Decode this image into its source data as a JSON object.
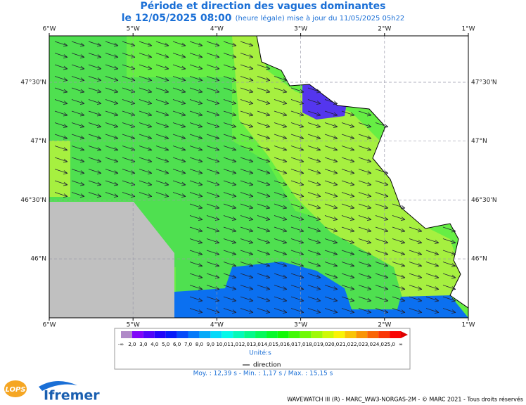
{
  "header": {
    "title": "Période et direction des vagues dominantes",
    "date": "le 12/05/2025 08:00",
    "update": "(heure légale) mise à jour du 11/05/2025 05h22"
  },
  "axes": {
    "lon_labels": [
      "6°W",
      "5°W",
      "4°W",
      "3°W",
      "2°W",
      "1°W"
    ],
    "lat_labels": [
      "47°30'N",
      "47°N",
      "46°30'N",
      "46°N"
    ]
  },
  "legend": {
    "labels": [
      "-∞",
      "2,0",
      "3,0",
      "4,0",
      "5,0",
      "6,0",
      "7,0",
      "8,0",
      "9,0",
      "10,0",
      "11,0",
      "12,0",
      "13,0",
      "14,0",
      "15,0",
      "16,0",
      "17,0",
      "18,0",
      "19,0",
      "20,0",
      "21,0",
      "22,0",
      "23,0",
      "24,0",
      "25,0",
      "∞"
    ],
    "unit": "Unité:s",
    "direction": "direction",
    "stats": "Moy. : 12,39 s  -  Min. : 1,17 s / Max. : 15,15 s"
  },
  "footer": {
    "logos": [
      "LOPS",
      "Ifremer"
    ],
    "credits": "WAVEWATCH III (R) - MARC_WW3-NORGAS-2M - © MARC 2021 - Tous droits réservés"
  }
}
